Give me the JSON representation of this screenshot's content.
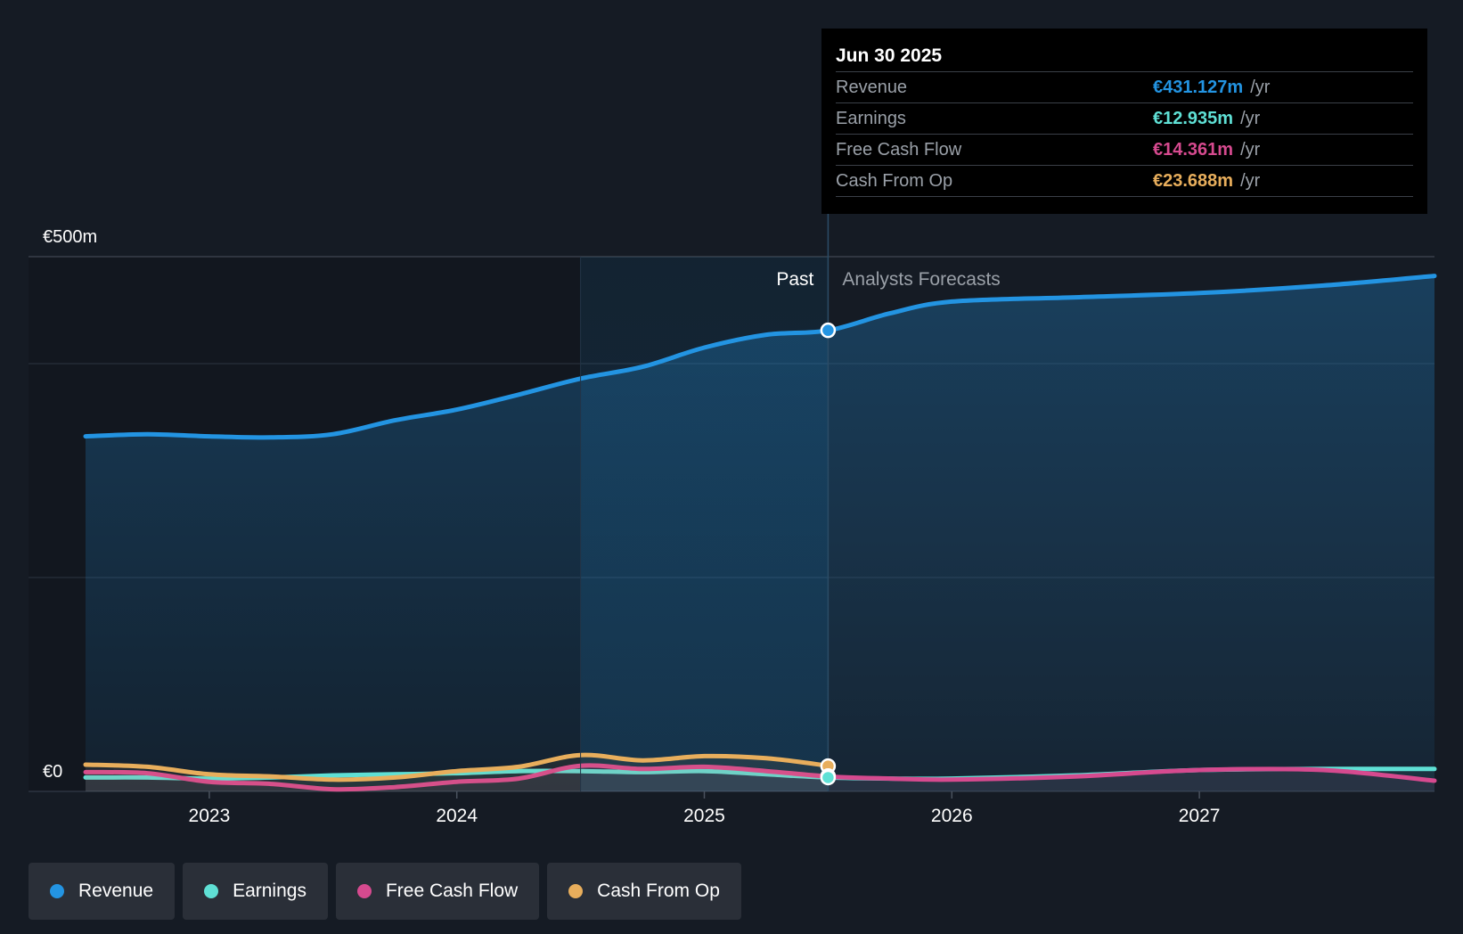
{
  "chart_data": {
    "type": "area",
    "y_unit": "€m",
    "ylim": [
      0,
      500
    ],
    "yticks": [
      {
        "value": 500,
        "label": "€500m"
      },
      {
        "value": 0,
        "label": "€0"
      }
    ],
    "gridlines": [
      0,
      200,
      400,
      500
    ],
    "xlim": [
      2022.5,
      2027.95
    ],
    "xticks": [
      {
        "value": 2023,
        "label": "2023"
      },
      {
        "value": 2024,
        "label": "2024"
      },
      {
        "value": 2025,
        "label": "2025"
      },
      {
        "value": 2026,
        "label": "2026"
      },
      {
        "value": 2027,
        "label": "2027"
      }
    ],
    "divider_x": 2025.5,
    "highlight_start_x": 2024.5,
    "past_label": "Past",
    "forecast_label": "Analysts Forecasts",
    "series": [
      {
        "name": "Revenue",
        "color": "#2394e2",
        "fill": true,
        "points": [
          [
            2022.5,
            332
          ],
          [
            2022.75,
            334
          ],
          [
            2023,
            332
          ],
          [
            2023.25,
            331
          ],
          [
            2023.5,
            334
          ],
          [
            2023.75,
            347
          ],
          [
            2024,
            357
          ],
          [
            2024.25,
            371
          ],
          [
            2024.5,
            386
          ],
          [
            2024.75,
            397
          ],
          [
            2025,
            415
          ],
          [
            2025.25,
            427
          ],
          [
            2025.5,
            431
          ],
          [
            2025.75,
            447
          ],
          [
            2026,
            458
          ],
          [
            2026.5,
            462
          ],
          [
            2027,
            466
          ],
          [
            2027.5,
            473
          ],
          [
            2027.95,
            482
          ]
        ]
      },
      {
        "name": "Earnings",
        "color": "#5fe0d5",
        "fill": false,
        "points": [
          [
            2022.5,
            13
          ],
          [
            2022.75,
            13
          ],
          [
            2023,
            12
          ],
          [
            2023.25,
            13
          ],
          [
            2023.5,
            15
          ],
          [
            2023.75,
            16
          ],
          [
            2024,
            17
          ],
          [
            2024.25,
            19
          ],
          [
            2024.5,
            19
          ],
          [
            2024.75,
            18
          ],
          [
            2025,
            19
          ],
          [
            2025.25,
            16
          ],
          [
            2025.5,
            13
          ],
          [
            2025.75,
            12
          ],
          [
            2026,
            12
          ],
          [
            2026.5,
            15
          ],
          [
            2027,
            20
          ],
          [
            2027.5,
            21
          ],
          [
            2027.95,
            21
          ]
        ]
      },
      {
        "name": "Free Cash Flow",
        "color": "#d64a8f",
        "fill": false,
        "points": [
          [
            2022.5,
            18
          ],
          [
            2022.75,
            17
          ],
          [
            2023,
            9
          ],
          [
            2023.25,
            7
          ],
          [
            2023.5,
            2
          ],
          [
            2023.75,
            4
          ],
          [
            2024,
            9
          ],
          [
            2024.25,
            12
          ],
          [
            2024.5,
            24
          ],
          [
            2024.75,
            21
          ],
          [
            2025,
            23
          ],
          [
            2025.25,
            19
          ],
          [
            2025.5,
            14
          ],
          [
            2025.75,
            12
          ],
          [
            2026,
            11
          ],
          [
            2026.5,
            14
          ],
          [
            2027,
            20
          ],
          [
            2027.5,
            20
          ],
          [
            2027.95,
            10
          ]
        ]
      },
      {
        "name": "Cash From Op",
        "color": "#e8ae5c",
        "fill": false,
        "points": [
          [
            2022.5,
            25
          ],
          [
            2022.75,
            23
          ],
          [
            2023,
            16
          ],
          [
            2023.25,
            14
          ],
          [
            2023.5,
            11
          ],
          [
            2023.75,
            13
          ],
          [
            2024,
            19
          ],
          [
            2024.25,
            23
          ],
          [
            2024.5,
            34
          ],
          [
            2024.75,
            29
          ],
          [
            2025,
            33
          ],
          [
            2025.25,
            31
          ],
          [
            2025.5,
            24
          ]
        ]
      }
    ],
    "markers": [
      {
        "series": "Revenue",
        "x": 2025.5,
        "y": 431.127
      },
      {
        "series": "Cash From Op",
        "x": 2025.5,
        "y": 23.688
      },
      {
        "series": "Free Cash Flow",
        "x": 2025.5,
        "y": 14.361
      },
      {
        "series": "Earnings",
        "x": 2025.5,
        "y": 12.935
      }
    ]
  },
  "tooltip": {
    "date": "Jun 30 2025",
    "rows": [
      {
        "name": "Revenue",
        "value": "€431.127m",
        "unit": "/yr",
        "color": "#2394e2"
      },
      {
        "name": "Earnings",
        "value": "€12.935m",
        "unit": "/yr",
        "color": "#5fe0d5"
      },
      {
        "name": "Free Cash Flow",
        "value": "€14.361m",
        "unit": "/yr",
        "color": "#d64a8f"
      },
      {
        "name": "Cash From Op",
        "value": "€23.688m",
        "unit": "/yr",
        "color": "#e8ae5c"
      }
    ]
  },
  "legend": [
    {
      "label": "Revenue",
      "color": "#2394e2"
    },
    {
      "label": "Earnings",
      "color": "#5fe0d5"
    },
    {
      "label": "Free Cash Flow",
      "color": "#d64a8f"
    },
    {
      "label": "Cash From Op",
      "color": "#e8ae5c"
    }
  ],
  "colors": {
    "background": "#151b24",
    "grid": "#2c3440",
    "past_text": "#ffffff",
    "forecast_text": "#9aa0a8"
  }
}
